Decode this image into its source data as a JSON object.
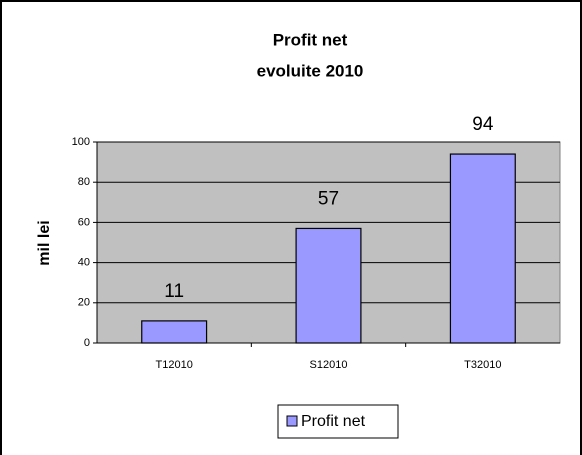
{
  "chart_data": {
    "type": "bar",
    "title": "Profit net",
    "subtitle": "evoluite 2010",
    "y_label": "mil lei",
    "categories": [
      "T12010",
      "S12010",
      "T32010"
    ],
    "series": [
      {
        "name": "Profit net",
        "color": "#9999ff",
        "values": [
          11,
          57,
          94
        ]
      }
    ],
    "ylim": [
      0,
      100
    ],
    "yticks": [
      0,
      20,
      40,
      60,
      80,
      100
    ],
    "grid": true,
    "legend": "bottom",
    "plot_background": "#c0c0c0"
  }
}
